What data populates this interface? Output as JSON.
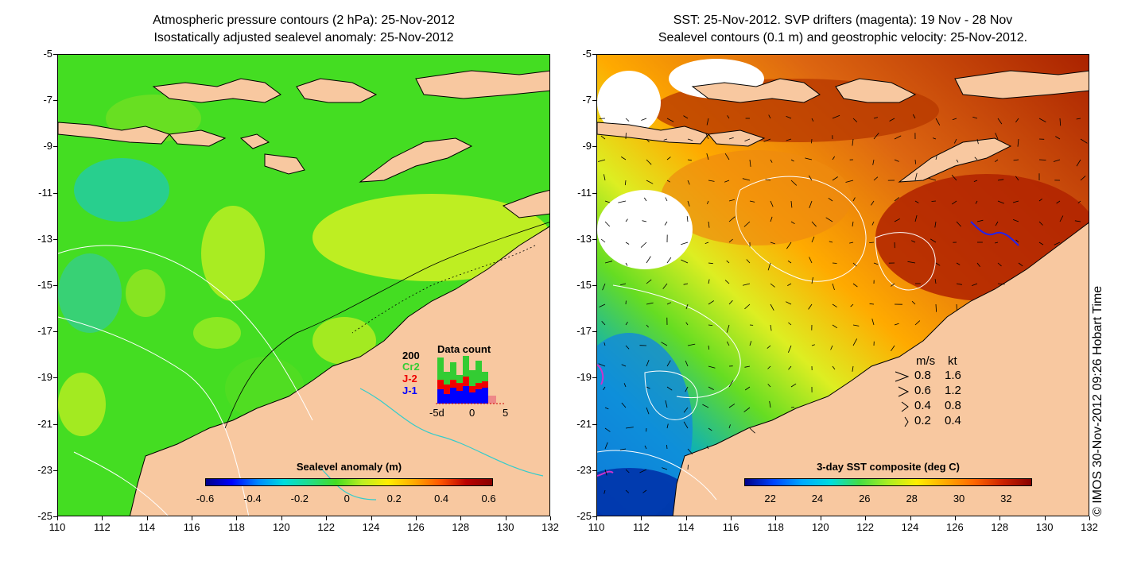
{
  "left_panel": {
    "title_line1": "Atmospheric pressure contours (2 hPa): 25-Nov-2012",
    "title_line2": "Isostatically adjusted sealevel anomaly: 25-Nov-2012",
    "y_ticks": [
      "-5",
      "-7",
      "-9",
      "-11",
      "-13",
      "-15",
      "-17",
      "-19",
      "-21",
      "-23",
      "-25"
    ],
    "x_ticks": [
      "110",
      "112",
      "114",
      "116",
      "118",
      "120",
      "122",
      "124",
      "126",
      "128",
      "130",
      "132"
    ],
    "colorbar": {
      "title": "Sealevel anomaly (m)",
      "ticks": [
        "-0.6",
        "-0.4",
        "-0.2",
        "0",
        "0.2",
        "0.4",
        "0.6"
      ]
    },
    "data_count": {
      "title": "Data count",
      "max_label": "200",
      "series": [
        "Cr2",
        "J-2",
        "J-1"
      ],
      "series_colors": [
        "#33cc33",
        "#ee0000",
        "#0000ff"
      ],
      "x_labels": [
        "-5d",
        "0",
        "5"
      ]
    }
  },
  "right_panel": {
    "title_line1": "SST: 25-Nov-2012. SVP drifters (magenta): 19 Nov - 28 Nov",
    "title_line2": "Sealevel contours (0.1 m) and geostrophic velocity: 25-Nov-2012.",
    "y_ticks": [
      "-5",
      "-7",
      "-9",
      "-11",
      "-13",
      "-15",
      "-17",
      "-19",
      "-21",
      "-23",
      "-25"
    ],
    "x_ticks": [
      "110",
      "112",
      "114",
      "116",
      "118",
      "120",
      "122",
      "124",
      "126",
      "128",
      "130",
      "132"
    ],
    "colorbar": {
      "title": "3-day SST composite (deg C)",
      "ticks": [
        "22",
        "24",
        "26",
        "28",
        "30",
        "32"
      ]
    },
    "velocity_legend": {
      "header_ms": "m/s",
      "header_kt": "kt",
      "rows": [
        {
          "ms": "0.8",
          "kt": "1.6"
        },
        {
          "ms": "0.6",
          "kt": "1.2"
        },
        {
          "ms": "0.4",
          "kt": "0.8"
        },
        {
          "ms": "0.2",
          "kt": "0.4"
        }
      ]
    }
  },
  "timestamp": "© IMOS 30-Nov-2012 09:26 Hobart Time",
  "colors": {
    "land": "#f8c8a0",
    "sla_base": "#33dd33",
    "sst_base": "#d86a10"
  }
}
